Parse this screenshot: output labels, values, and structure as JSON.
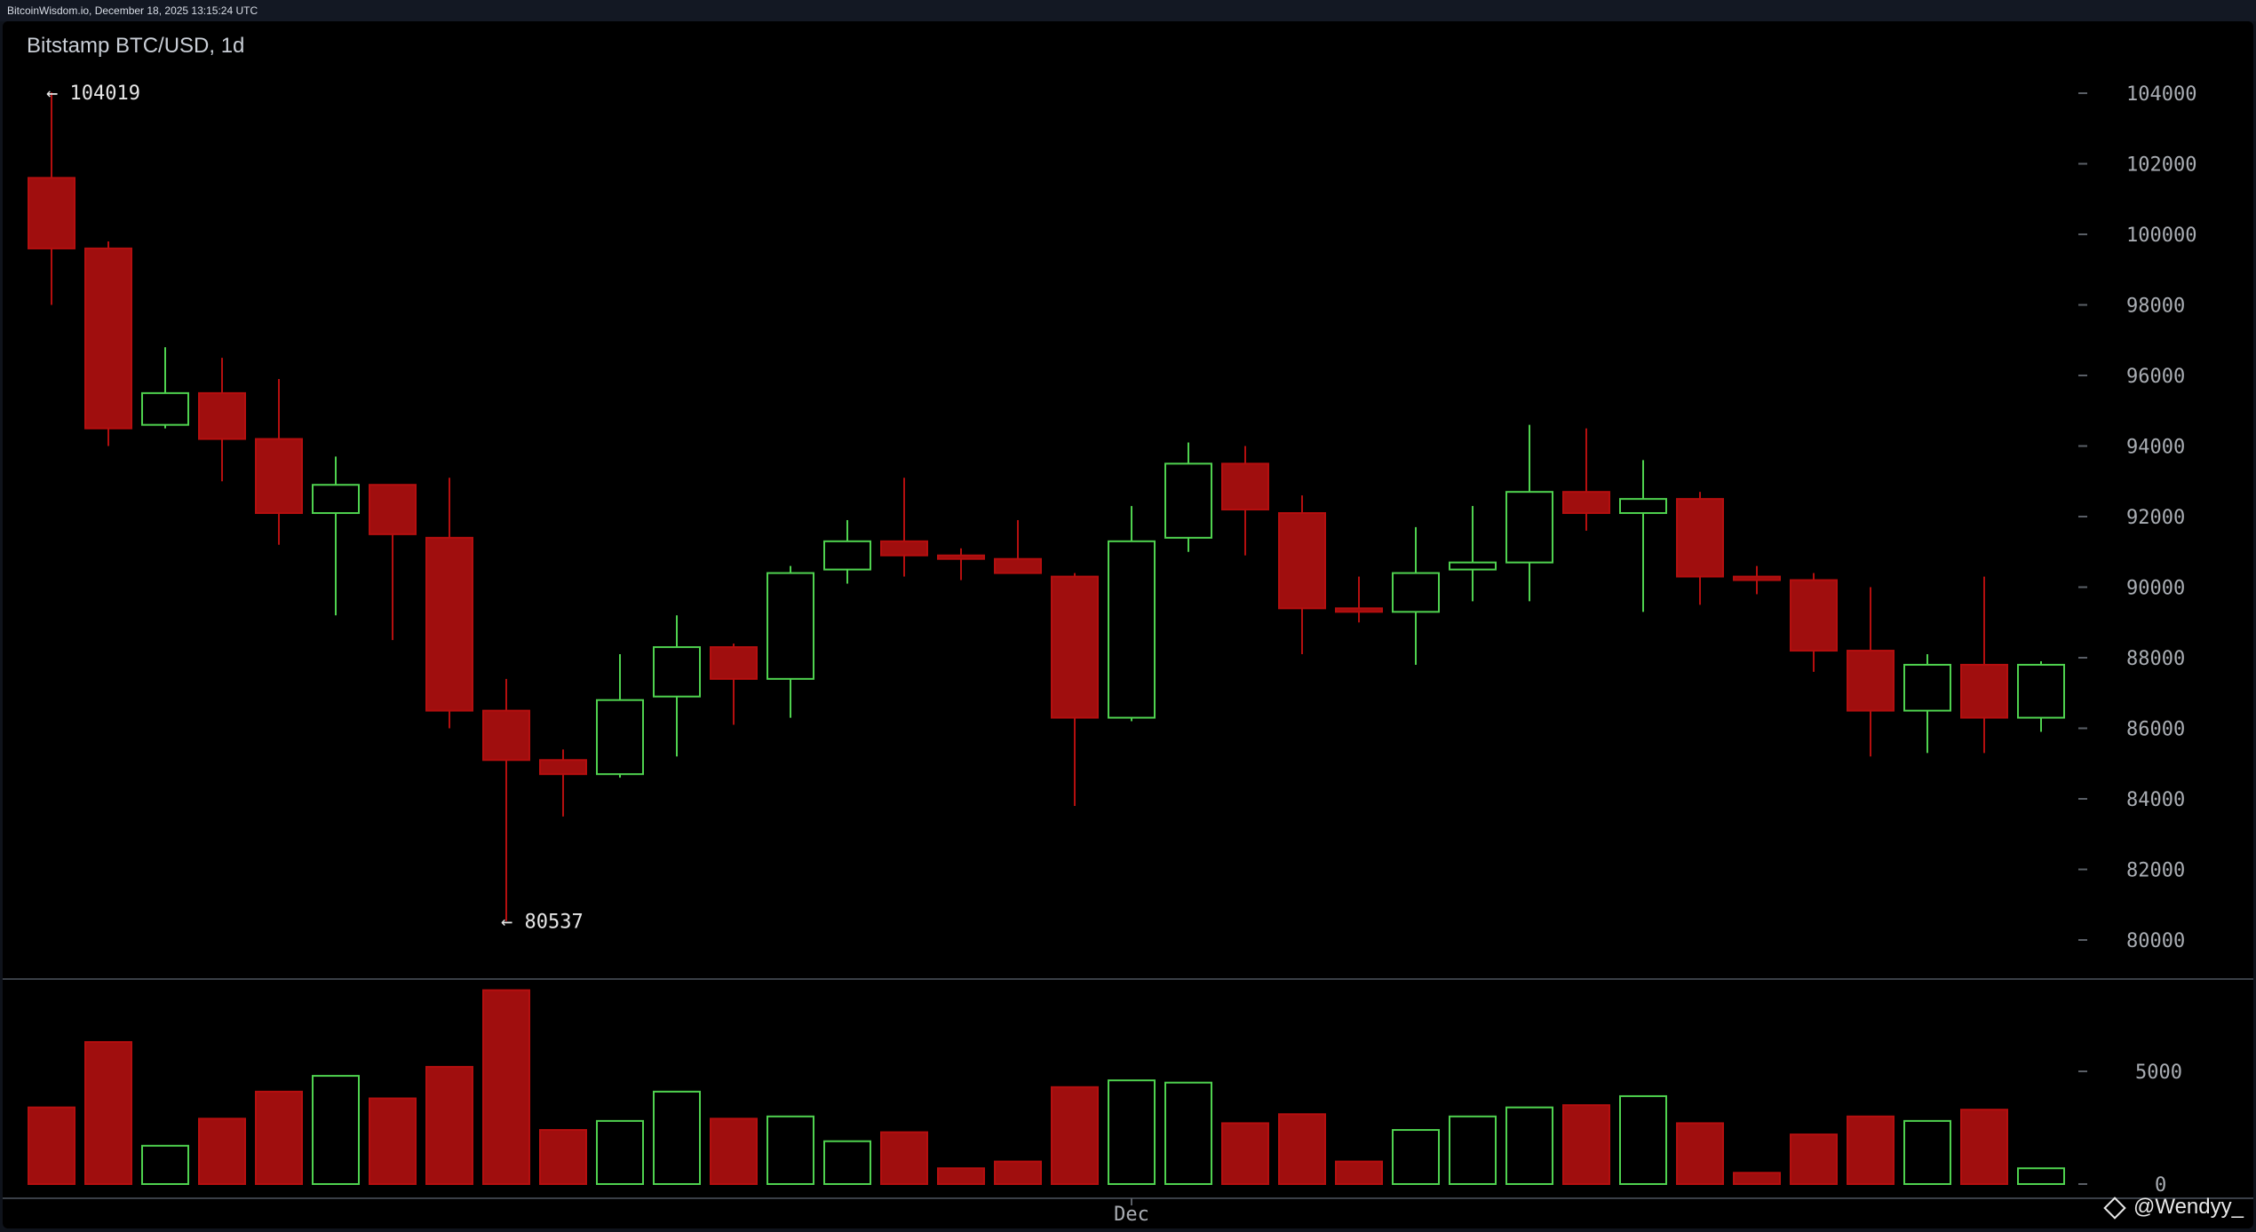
{
  "header": {
    "source": "BitcoinWisdom.io, December 18, 2025 13:15:24 UTC"
  },
  "chart_title": "Bitstamp BTC/USD, 1d",
  "watermark": "@Wendyy_",
  "colors": {
    "up": "#4fd24f",
    "down": "#b50f0f",
    "down_fill": "#a00e0e",
    "axis": "#a9adb3",
    "background": "#000000"
  },
  "chart_data": {
    "type": "candlestick",
    "title": "Bitstamp BTC/USD, 1d",
    "price_axis": {
      "ylim": [
        79000,
        105000
      ],
      "ticks": [
        80000,
        82000,
        84000,
        86000,
        88000,
        90000,
        92000,
        94000,
        96000,
        98000,
        100000,
        102000,
        104000
      ]
    },
    "volume_axis": {
      "ylim": [
        0,
        8600
      ],
      "ticks": [
        0,
        5000
      ]
    },
    "x_labels": [
      {
        "index": 19,
        "label": "Dec"
      }
    ],
    "annotations": [
      {
        "index": 0,
        "price": 104019,
        "label": "← 104019"
      },
      {
        "index": 8,
        "price": 80537,
        "label": "← 80537"
      }
    ],
    "candles": [
      {
        "o": 101600,
        "h": 104019,
        "l": 98000,
        "c": 99600,
        "v": 3400
      },
      {
        "o": 99600,
        "h": 99800,
        "l": 94000,
        "c": 94500,
        "v": 6300
      },
      {
        "o": 94600,
        "h": 96800,
        "l": 94500,
        "c": 95500,
        "v": 1700
      },
      {
        "o": 95500,
        "h": 96500,
        "l": 93000,
        "c": 94200,
        "v": 2900
      },
      {
        "o": 94200,
        "h": 95900,
        "l": 91200,
        "c": 92100,
        "v": 4100
      },
      {
        "o": 92100,
        "h": 93700,
        "l": 89200,
        "c": 92900,
        "v": 4800
      },
      {
        "o": 92900,
        "h": 92900,
        "l": 88500,
        "c": 91500,
        "v": 3800
      },
      {
        "o": 91400,
        "h": 93100,
        "l": 86000,
        "c": 86500,
        "v": 5200
      },
      {
        "o": 86500,
        "h": 87400,
        "l": 80537,
        "c": 85100,
        "v": 8600
      },
      {
        "o": 85100,
        "h": 85400,
        "l": 83500,
        "c": 84700,
        "v": 2400
      },
      {
        "o": 84700,
        "h": 88100,
        "l": 84600,
        "c": 86800,
        "v": 2800
      },
      {
        "o": 86900,
        "h": 89200,
        "l": 85200,
        "c": 88300,
        "v": 4100
      },
      {
        "o": 88300,
        "h": 88400,
        "l": 86100,
        "c": 87400,
        "v": 2900
      },
      {
        "o": 87400,
        "h": 90600,
        "l": 86300,
        "c": 90400,
        "v": 3000
      },
      {
        "o": 90500,
        "h": 91900,
        "l": 90100,
        "c": 91300,
        "v": 1900
      },
      {
        "o": 91300,
        "h": 93100,
        "l": 90300,
        "c": 90900,
        "v": 2300
      },
      {
        "o": 90900,
        "h": 91100,
        "l": 90200,
        "c": 90800,
        "v": 700
      },
      {
        "o": 90800,
        "h": 91900,
        "l": 90400,
        "c": 90400,
        "v": 1000
      },
      {
        "o": 90300,
        "h": 90400,
        "l": 83800,
        "c": 86300,
        "v": 4300
      },
      {
        "o": 86300,
        "h": 92300,
        "l": 86200,
        "c": 91300,
        "v": 4600
      },
      {
        "o": 91400,
        "h": 94100,
        "l": 91000,
        "c": 93500,
        "v": 4500
      },
      {
        "o": 93500,
        "h": 94000,
        "l": 90900,
        "c": 92200,
        "v": 2700
      },
      {
        "o": 92100,
        "h": 92600,
        "l": 88100,
        "c": 89400,
        "v": 3100
      },
      {
        "o": 89400,
        "h": 90300,
        "l": 89000,
        "c": 89300,
        "v": 1000
      },
      {
        "o": 89300,
        "h": 91700,
        "l": 87800,
        "c": 90400,
        "v": 2400
      },
      {
        "o": 90500,
        "h": 92300,
        "l": 89600,
        "c": 90700,
        "v": 3000
      },
      {
        "o": 90700,
        "h": 94600,
        "l": 89600,
        "c": 92700,
        "v": 3400
      },
      {
        "o": 92700,
        "h": 94500,
        "l": 91600,
        "c": 92100,
        "v": 3500
      },
      {
        "o": 92100,
        "h": 93600,
        "l": 89300,
        "c": 92500,
        "v": 3900
      },
      {
        "o": 92500,
        "h": 92700,
        "l": 89500,
        "c": 90300,
        "v": 2700
      },
      {
        "o": 90300,
        "h": 90600,
        "l": 89800,
        "c": 90200,
        "v": 500
      },
      {
        "o": 90200,
        "h": 90400,
        "l": 87600,
        "c": 88200,
        "v": 2200
      },
      {
        "o": 88200,
        "h": 90000,
        "l": 85200,
        "c": 86500,
        "v": 3000
      },
      {
        "o": 86500,
        "h": 88100,
        "l": 85300,
        "c": 87800,
        "v": 2800
      },
      {
        "o": 87800,
        "h": 90300,
        "l": 85300,
        "c": 86300,
        "v": 3300
      },
      {
        "o": 86300,
        "h": 87900,
        "l": 85900,
        "c": 87800,
        "v": 700
      }
    ]
  }
}
